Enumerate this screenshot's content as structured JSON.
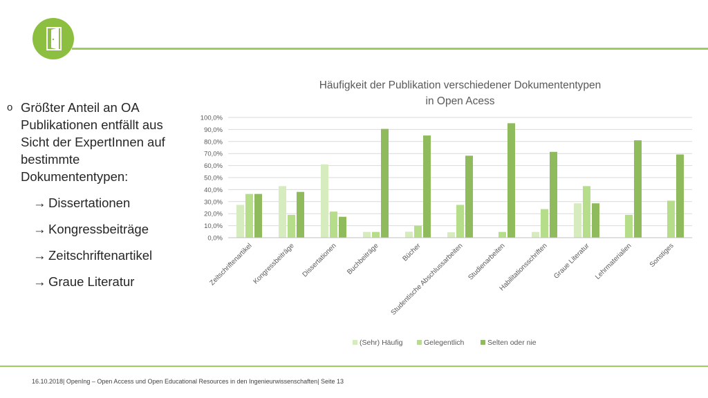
{
  "bullets": {
    "main": "Größter Anteil an OA Publikationen entfällt aus Sicht der ExpertInnen auf bestimmte Dokumententypen:",
    "items": [
      "Dissertationen",
      "Kongressbeiträge",
      "Zeitschriftenartikel",
      "Graue Literatur"
    ]
  },
  "footer": "16.10.2018| OpenIng – Open Access und Open Educational Resources in den Ingenieurwissenschaften| Seite 13",
  "icons": {
    "logo": "door-icon"
  },
  "colors": {
    "accent": "#8cbf3f",
    "series": [
      "#d6ecbf",
      "#b6dd8a",
      "#8fbb5c"
    ]
  },
  "chart_data": {
    "type": "bar",
    "title": [
      "Häufigkeit der Publikation verschiedener Dokumententypen",
      "in Open Acess"
    ],
    "categories": [
      "Zeitschriftenartikel",
      "Kongressbeiträge",
      "Dissertationen",
      "Buchbeiträge",
      "Bücher",
      "Studentische Abschlussarbeiten",
      "Studienarbeiten",
      "Habilitationsschriften",
      "Graue Literatur",
      "Lehrmaterialien",
      "Sonstiges"
    ],
    "series": [
      {
        "name": "(Sehr) Häufig",
        "values": [
          27.3,
          42.9,
          60.9,
          4.8,
          5.0,
          4.5,
          0.0,
          4.8,
          28.6,
          0.0,
          0.0
        ]
      },
      {
        "name": "Gelegentlich",
        "values": [
          36.4,
          19.0,
          21.7,
          4.8,
          10.0,
          27.3,
          4.8,
          23.8,
          42.9,
          19.0,
          30.8
        ]
      },
      {
        "name": "Selten oder nie",
        "values": [
          36.4,
          38.1,
          17.4,
          90.5,
          85.0,
          68.2,
          95.2,
          71.4,
          28.6,
          81.0,
          69.2
        ]
      }
    ],
    "ylim": [
      0,
      100
    ],
    "yticks": [
      "0,0%",
      "10,0%",
      "20,0%",
      "30,0%",
      "40,0%",
      "50,0%",
      "60,0%",
      "70,0%",
      "80,0%",
      "90,0%",
      "100,0%"
    ],
    "grid": true,
    "legend": "bottom"
  }
}
